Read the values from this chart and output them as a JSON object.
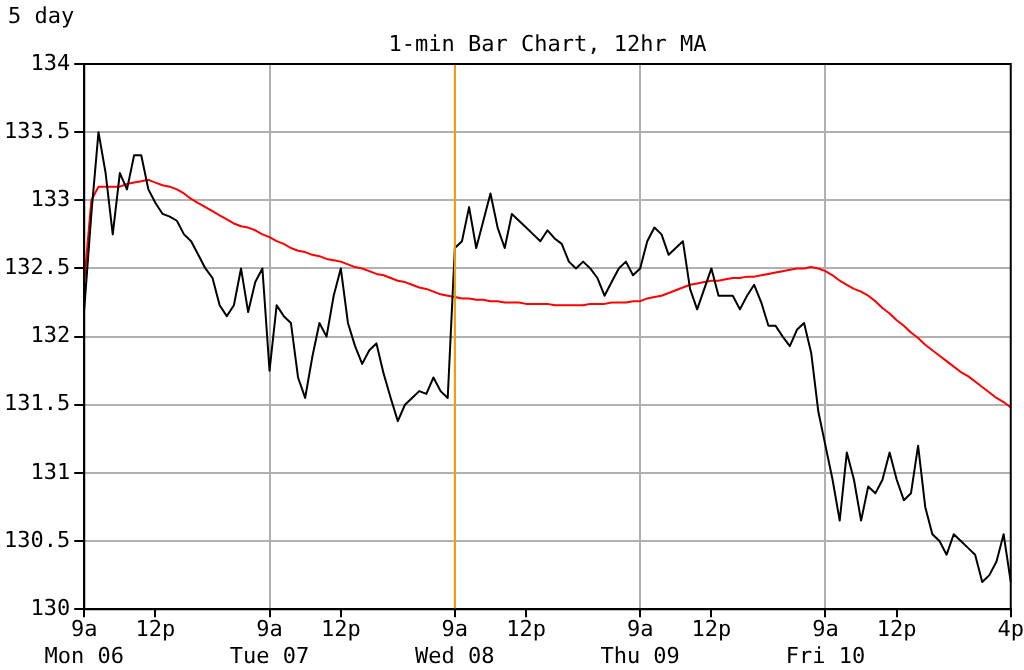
{
  "chart_data": {
    "type": "line",
    "title": "5 day",
    "subtitle": "1-min Bar Chart, 12hr MA",
    "categories": [
      "9a\nMon 06",
      null,
      null,
      null,
      null,
      null,
      null,
      null,
      null,
      null,
      "12p",
      null,
      null,
      null,
      null,
      null,
      null,
      null,
      null,
      null,
      null,
      null,
      null,
      null,
      null,
      null,
      "9a\nTue 07",
      null,
      null,
      null,
      null,
      null,
      null,
      null,
      null,
      null,
      "12p",
      null,
      null,
      null,
      null,
      null,
      null,
      null,
      null,
      null,
      null,
      null,
      null,
      null,
      null,
      null,
      "9a\nWed 08",
      null,
      null,
      null,
      null,
      null,
      null,
      null,
      null,
      null,
      "12p",
      null,
      null,
      null,
      null,
      null,
      null,
      null,
      null,
      null,
      null,
      null,
      null,
      null,
      null,
      null,
      "9a\nThu 09",
      null,
      null,
      null,
      null,
      null,
      null,
      null,
      null,
      null,
      "12p",
      null,
      null,
      null,
      null,
      null,
      null,
      null,
      null,
      null,
      null,
      null,
      null,
      null,
      null,
      null,
      "9a\nFri 10",
      null,
      null,
      null,
      null,
      null,
      null,
      null,
      null,
      null,
      "12p",
      null,
      null,
      null,
      null,
      null,
      null,
      null,
      null,
      null,
      null,
      null,
      null,
      null,
      null,
      null,
      "4p"
    ],
    "ylim": [
      130,
      134
    ],
    "yticks": [
      130,
      130.5,
      131,
      131.5,
      132,
      132.5,
      133,
      133.5,
      134
    ],
    "grid": true,
    "marker": "none",
    "ref_lines": [
      {
        "axis": "x",
        "value": "9a\nWed 08",
        "color": "#f0a000"
      }
    ],
    "series": [
      {
        "color": "#000000",
        "values": [
          132.2,
          132.9,
          133.5,
          133.2,
          132.75,
          133.2,
          133.08,
          133.33,
          133.33,
          133.08,
          132.98,
          132.9,
          132.88,
          132.85,
          132.75,
          132.7,
          132.6,
          132.5,
          132.43,
          132.23,
          132.15,
          132.23,
          132.5,
          132.18,
          132.4,
          132.5,
          131.75,
          132.23,
          132.15,
          132.1,
          131.7,
          131.55,
          131.85,
          132.1,
          132.0,
          132.3,
          132.5,
          132.1,
          131.93,
          131.8,
          131.9,
          131.95,
          131.73,
          131.55,
          131.38,
          131.5,
          131.55,
          131.6,
          131.58,
          131.7,
          131.6,
          131.55,
          132.65,
          132.7,
          132.95,
          132.65,
          132.85,
          133.05,
          132.8,
          132.65,
          132.9,
          132.85,
          132.8,
          132.75,
          132.7,
          132.78,
          132.72,
          132.68,
          132.55,
          132.5,
          132.55,
          132.5,
          132.43,
          132.3,
          132.4,
          132.5,
          132.55,
          132.45,
          132.5,
          132.7,
          132.8,
          132.75,
          132.6,
          132.65,
          132.7,
          132.35,
          132.2,
          132.35,
          132.5,
          132.3,
          132.3,
          132.3,
          132.2,
          132.3,
          132.38,
          132.25,
          132.08,
          132.08,
          132.0,
          131.93,
          132.05,
          132.1,
          131.88,
          131.45,
          131.2,
          130.95,
          130.65,
          131.15,
          130.95,
          130.65,
          130.9,
          130.85,
          130.95,
          131.15,
          130.95,
          130.8,
          130.85,
          131.2,
          130.75,
          130.55,
          130.5,
          130.4,
          130.55,
          130.5,
          130.45,
          130.4,
          130.2,
          130.25,
          130.35,
          130.55,
          130.2
        ]
      },
      {
        "color": "#ff0000",
        "values": [
          132.4,
          133.0,
          133.1,
          133.1,
          133.1,
          133.1,
          133.12,
          133.13,
          133.14,
          133.15,
          133.13,
          133.11,
          133.1,
          133.08,
          133.05,
          133.01,
          132.98,
          132.95,
          132.92,
          132.89,
          132.86,
          132.83,
          132.81,
          132.8,
          132.78,
          132.75,
          132.73,
          132.7,
          132.68,
          132.65,
          132.63,
          132.62,
          132.6,
          132.59,
          132.57,
          132.56,
          132.55,
          132.53,
          132.51,
          132.5,
          132.48,
          132.46,
          132.45,
          132.43,
          132.41,
          132.4,
          132.38,
          132.36,
          132.35,
          132.33,
          132.31,
          132.3,
          132.29,
          132.28,
          132.28,
          132.27,
          132.27,
          132.26,
          132.26,
          132.25,
          132.25,
          132.25,
          132.24,
          132.24,
          132.24,
          132.24,
          132.23,
          132.23,
          132.23,
          132.23,
          132.23,
          132.24,
          132.24,
          132.24,
          132.25,
          132.25,
          132.25,
          132.26,
          132.26,
          132.28,
          132.29,
          132.3,
          132.32,
          132.34,
          132.36,
          132.38,
          132.39,
          132.4,
          132.41,
          132.41,
          132.42,
          132.43,
          132.43,
          132.44,
          132.44,
          132.45,
          132.46,
          132.47,
          132.48,
          132.49,
          132.5,
          132.5,
          132.51,
          132.5,
          132.48,
          132.45,
          132.41,
          132.38,
          132.35,
          132.33,
          132.3,
          132.26,
          132.21,
          132.17,
          132.12,
          132.08,
          132.03,
          131.99,
          131.94,
          131.9,
          131.86,
          131.82,
          131.78,
          131.74,
          131.71,
          131.67,
          131.63,
          131.59,
          131.55,
          131.52,
          131.48
        ]
      }
    ]
  }
}
